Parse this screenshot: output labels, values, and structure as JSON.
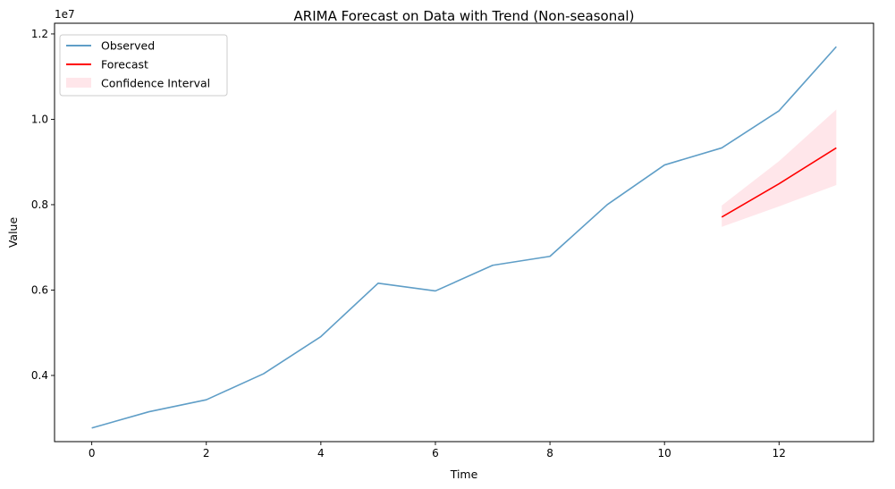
{
  "chart_data": {
    "type": "line",
    "title": "ARIMA Forecast on Data with Trend (Non-seasonal)",
    "xlabel": "Time",
    "ylabel": "Value",
    "y_offset_label": "1e7",
    "xlim": [
      -0.65,
      13.65
    ],
    "ylim": [
      2450000,
      12250000
    ],
    "x_ticks": [
      0,
      2,
      4,
      6,
      8,
      10,
      12
    ],
    "y_ticks": [
      4000000,
      6000000,
      8000000,
      10000000,
      12000000
    ],
    "y_tick_labels": [
      "0.4",
      "0.6",
      "0.8",
      "1.0",
      "1.2"
    ],
    "grid": false,
    "legend_position": "upper-left",
    "series": [
      {
        "name": "Observed",
        "color": "#5f9ec7",
        "x": [
          0,
          1,
          2,
          3,
          4,
          5,
          6,
          7,
          8,
          9,
          10,
          11,
          12,
          13
        ],
        "values": [
          2770000,
          3150000,
          3430000,
          4040000,
          4910000,
          6160000,
          5980000,
          6580000,
          6790000,
          8000000,
          8930000,
          9330000,
          10200000,
          11700000
        ]
      },
      {
        "name": "Forecast",
        "color": "#ff0000",
        "x": [
          11,
          12,
          13
        ],
        "values": [
          7710000,
          8490000,
          9330000
        ]
      }
    ],
    "confidence_interval": {
      "name": "Confidence Interval",
      "color": "#ffc0cb",
      "x": [
        11,
        12,
        13
      ],
      "lower": [
        7480000,
        7960000,
        8460000
      ],
      "upper": [
        7980000,
        9020000,
        10230000
      ]
    }
  }
}
